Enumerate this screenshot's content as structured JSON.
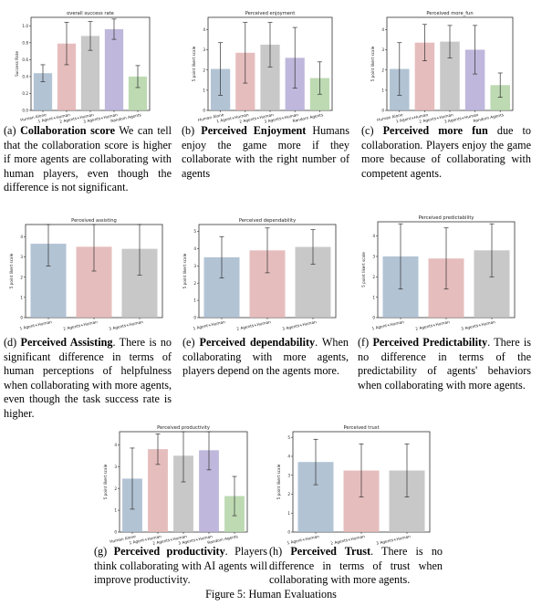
{
  "colors": {
    "c1": "#a5b9cc",
    "c2": "#e2b1b1",
    "c3": "#bebebe",
    "c4": "#b4acd6",
    "c5": "#b2d3a5"
  },
  "figure_caption": "Figure 5: Human Evaluations",
  "chart_data": [
    {
      "id": "a",
      "type": "bar",
      "title": "overall success rate",
      "ylabel": "Success Rate",
      "ylim": [
        0,
        1.1
      ],
      "yticks": [
        0.0,
        0.2,
        0.4,
        0.6,
        0.8,
        1.0
      ],
      "categories": [
        "Human Alone",
        "1 Agent+Human",
        "2 Agents+Human",
        "3 Agents+Human",
        "Random Agents"
      ],
      "values": [
        0.44,
        0.79,
        0.88,
        0.96,
        0.4
      ],
      "errors": [
        0.1,
        0.25,
        0.17,
        0.12,
        0.13
      ],
      "caption": {
        "label": "(a)",
        "bold": "Collaboration score",
        "text": " We can tell that the collaboration score is higher if more agents are collaborating with human players, even though the difference is not significant."
      }
    },
    {
      "id": "b",
      "type": "bar",
      "title": "Perceived enjoyment",
      "ylabel": "5 point likert scale",
      "ylim": [
        0,
        4.6
      ],
      "yticks": [
        0,
        1,
        2,
        3,
        4
      ],
      "categories": [
        "Human Alone",
        "1 Agent+Human",
        "2 Agents+Human",
        "3 Agents+Human",
        "Random Agents"
      ],
      "values": [
        2.05,
        2.85,
        3.25,
        2.6,
        1.6
      ],
      "errors": [
        1.3,
        1.5,
        1.1,
        1.5,
        0.8
      ],
      "caption": {
        "label": "(b)",
        "bold": "Perceived Enjoyment",
        "text": " Humans enjoy the game more if they collaborate with the right number of agents"
      }
    },
    {
      "id": "c",
      "type": "bar",
      "title": "Perceived more_fun",
      "ylabel": "5 point likert scale",
      "ylim": [
        0,
        4.6
      ],
      "yticks": [
        0,
        1,
        2,
        3,
        4
      ],
      "categories": [
        "Human Alone",
        "1 Agent+Human",
        "2 Agents+Human",
        "3 Agents+Human",
        "Random Agents"
      ],
      "values": [
        2.05,
        3.35,
        3.4,
        3.0,
        1.25
      ],
      "errors": [
        1.3,
        0.9,
        0.8,
        1.2,
        0.6
      ],
      "caption": {
        "label": "(c)",
        "bold": "Perceived more fun",
        "text": " due to collaboration. Players enjoy the game more because of collaborating with competent agents."
      }
    },
    {
      "id": "d",
      "type": "bar",
      "title": "Perceived assisting",
      "ylabel": "5 point likert scale",
      "ylim": [
        0,
        4.6
      ],
      "yticks": [
        0,
        1,
        2,
        3,
        4
      ],
      "categories": [
        "1 Agent+Human",
        "2 Agents+Human",
        "3 Agents+Human"
      ],
      "values": [
        3.65,
        3.5,
        3.4
      ],
      "errors": [
        1.1,
        1.2,
        1.3
      ],
      "caption": {
        "label": "(d)",
        "bold": "Perceived Assisting",
        "text": ". There is no significant difference in terms of human perceptions of helpfulness when collaborating with more agents, even though the task success rate is higher."
      }
    },
    {
      "id": "e",
      "type": "bar",
      "title": "Perceived dependability",
      "ylabel": "5 point likert scale",
      "ylim": [
        0,
        5.4
      ],
      "yticks": [
        0,
        1,
        2,
        3,
        4,
        5
      ],
      "categories": [
        "1 Agent+Human",
        "2 Agents+Human",
        "3 Agents+Human"
      ],
      "values": [
        3.5,
        3.9,
        4.1
      ],
      "errors": [
        1.2,
        1.3,
        1.0
      ],
      "caption": {
        "label": "(e)",
        "bold": "Perceived dependability",
        "text": ". When collaborating with more agents, players depend on the agents more."
      }
    },
    {
      "id": "f",
      "type": "bar",
      "title": "Perceived predictability",
      "ylabel": "5 point likert scale",
      "ylim": [
        0,
        4.7
      ],
      "yticks": [
        0,
        1,
        2,
        3,
        4
      ],
      "categories": [
        "1 Agent+Human",
        "2 Agents+Human",
        "3 Agents+Human"
      ],
      "values": [
        3.0,
        2.9,
        3.3
      ],
      "errors": [
        1.6,
        1.5,
        1.3
      ],
      "caption": {
        "label": "(f)",
        "bold": "Perceived Predictability",
        "text": ". There is no difference in terms of the predictability of agents' behaviors when collaborating with more agents."
      }
    },
    {
      "id": "g",
      "type": "bar",
      "title": "Perceived productivity",
      "ylabel": "5 point likert scale",
      "ylim": [
        0,
        4.6
      ],
      "yticks": [
        0,
        1,
        2,
        3,
        4
      ],
      "categories": [
        "Human Alone",
        "1 Agent+Human",
        "2 Agents+Human",
        "3 Agents+Human",
        "Random Agents"
      ],
      "values": [
        2.45,
        3.8,
        3.5,
        3.75,
        1.65
      ],
      "errors": [
        1.4,
        0.7,
        1.2,
        0.9,
        0.9
      ],
      "caption": {
        "label": "(g)",
        "bold": "Perceived productivity",
        "text": ". Players think collaborating with AI agents will improve productivity."
      }
    },
    {
      "id": "h",
      "type": "bar",
      "title": "Perceived trust",
      "ylabel": "5 point likert scale",
      "ylim": [
        0,
        5.3
      ],
      "yticks": [
        0,
        1,
        2,
        3,
        4,
        5
      ],
      "categories": [
        "1 Agent+Human",
        "2 Agents+Human",
        "3 Agents+Human"
      ],
      "values": [
        3.7,
        3.25,
        3.25
      ],
      "errors": [
        1.2,
        1.4,
        1.4
      ],
      "caption": {
        "label": "(h)",
        "bold": "Perceived Trust",
        "text": ". There is no difference in terms of trust when collaborating with more agents."
      }
    }
  ]
}
